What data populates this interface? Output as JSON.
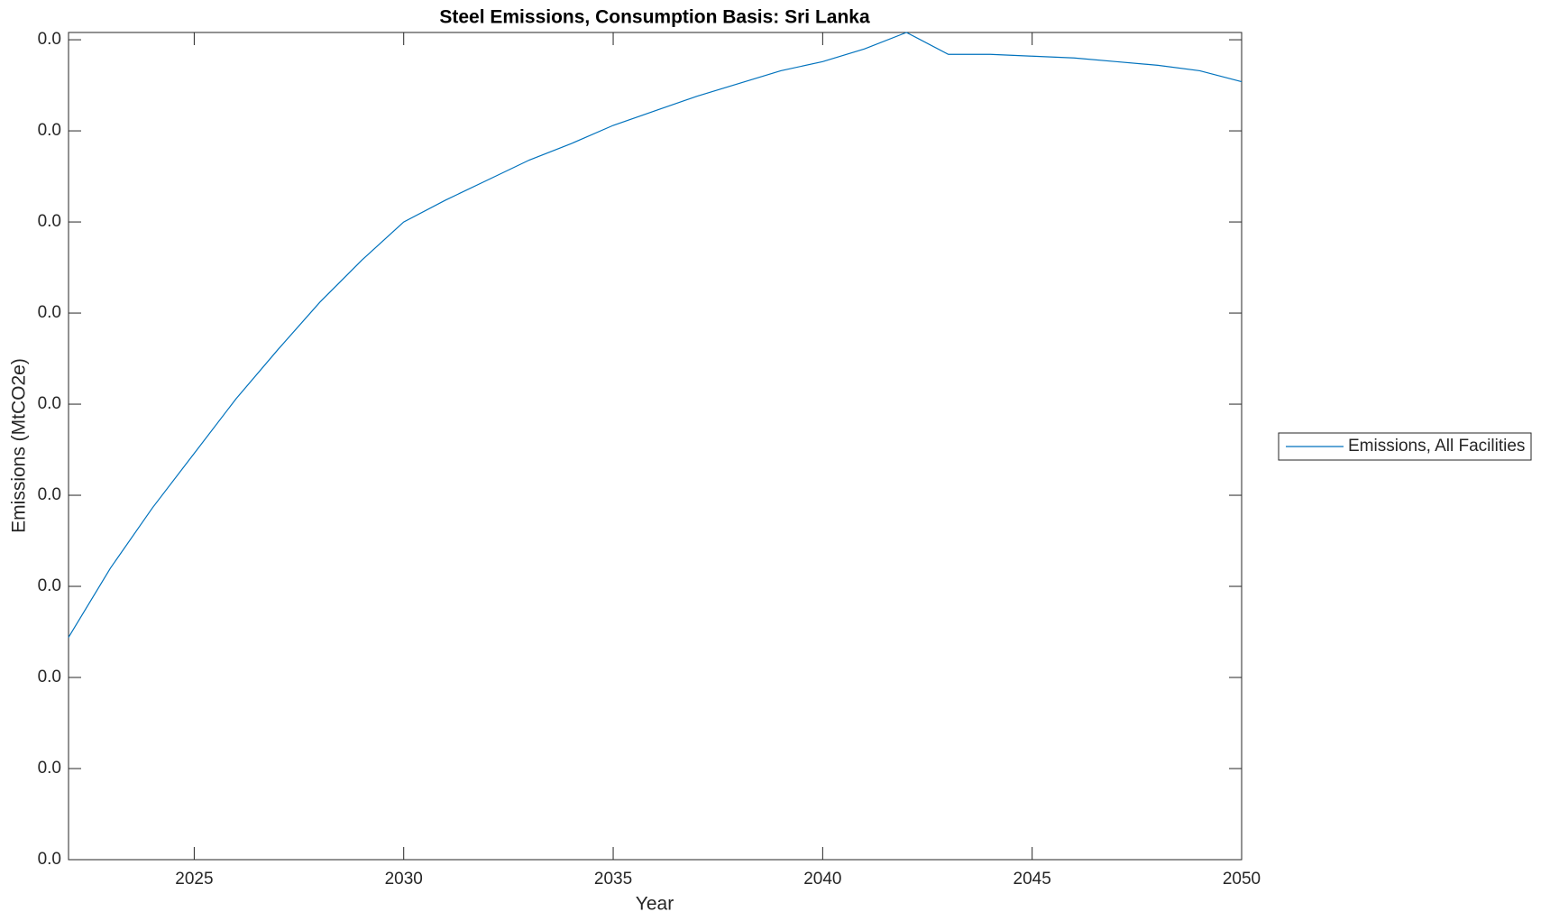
{
  "chart_data": {
    "type": "line",
    "title": "Steel Emissions, Consumption Basis: Sri Lanka",
    "x_label": "Year",
    "y_label": "Emissions (MtCO2e)",
    "x": [
      2022,
      2023,
      2024,
      2025,
      2026,
      2027,
      2028,
      2029,
      2030,
      2031,
      2032,
      2033,
      2034,
      2035,
      2036,
      2037,
      2038,
      2039,
      2040,
      2041,
      2042,
      2043,
      2044,
      2045,
      2046,
      2047,
      2048,
      2049,
      2050
    ],
    "series": [
      {
        "name": "Emissions, All Facilities",
        "color": "#0072bd",
        "values": [
          0.0122,
          0.016,
          0.0193,
          0.0223,
          0.0253,
          0.028,
          0.0306,
          0.0329,
          0.035,
          0.0362,
          0.0373,
          0.0384,
          0.0393,
          0.0403,
          0.0411,
          0.0419,
          0.0426,
          0.0433,
          0.0438,
          0.0445,
          0.0454,
          0.0442,
          0.0442,
          0.0441,
          0.044,
          0.0438,
          0.0436,
          0.0433,
          0.0427
        ]
      }
    ],
    "xlim": [
      2022,
      2050
    ],
    "xticks": [
      2025,
      2030,
      2035,
      2040,
      2045,
      2050
    ],
    "ylim": [
      0,
      0.0454
    ],
    "yticks": [
      {
        "value": 0,
        "label": "0.0"
      },
      {
        "value": 0.005,
        "label": "0.0"
      },
      {
        "value": 0.01,
        "label": "0.0"
      },
      {
        "value": 0.015,
        "label": "0.0"
      },
      {
        "value": 0.02,
        "label": "0.0"
      },
      {
        "value": 0.025,
        "label": "0.0"
      },
      {
        "value": 0.03,
        "label": "0.0"
      },
      {
        "value": 0.035,
        "label": "0.0"
      },
      {
        "value": 0.04,
        "label": "0.0"
      },
      {
        "value": 0.045,
        "label": "0.0"
      }
    ],
    "legend": "outside-right"
  }
}
